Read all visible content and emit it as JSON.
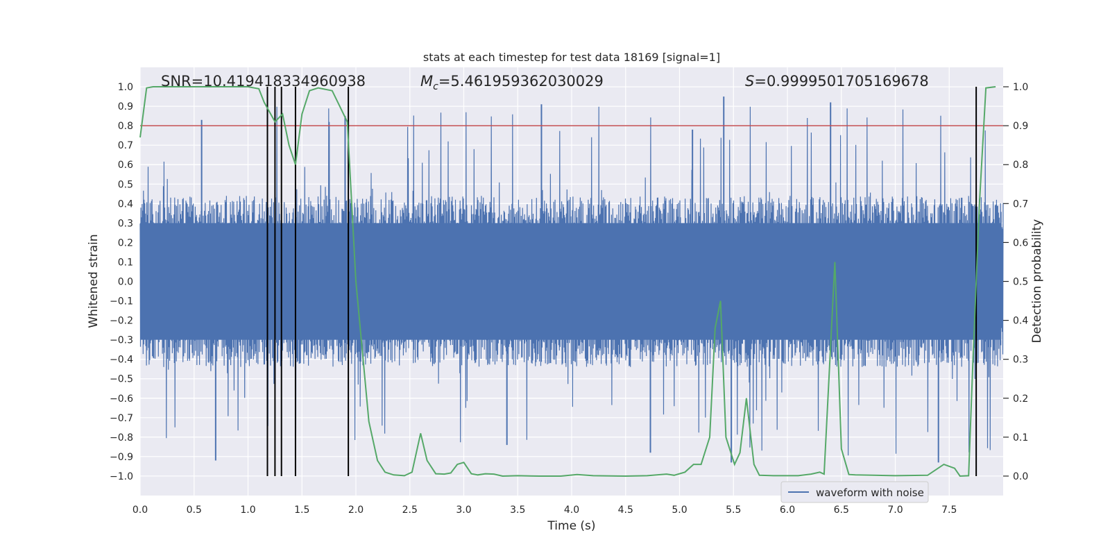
{
  "chart_data": {
    "type": "line",
    "title": "stats at each timestep for test data 18169 [signal=1]",
    "xlabel": "Time (s)",
    "ylabel": "Whitened strain",
    "y2label": "Detection probability",
    "xlim": [
      0.0,
      8.0
    ],
    "ylim": [
      -1.1,
      1.1
    ],
    "y2lim": [
      -0.05,
      1.05
    ],
    "xticks": [
      "0.0",
      "0.5",
      "1.0",
      "1.5",
      "2.0",
      "2.5",
      "3.0",
      "3.5",
      "4.0",
      "4.5",
      "5.0",
      "5.5",
      "6.0",
      "6.5",
      "7.0",
      "7.5"
    ],
    "yticks": [
      "1.0",
      "0.9",
      "0.8",
      "0.7",
      "0.6",
      "0.5",
      "0.4",
      "0.3",
      "0.2",
      "0.1",
      "0.0",
      "-0.1",
      "-0.2",
      "-0.3",
      "-0.4",
      "-0.5",
      "-0.6",
      "-0.7",
      "-0.8",
      "-0.9",
      "-1.0"
    ],
    "y2ticks": [
      "1.0",
      "0.9",
      "0.8",
      "0.7",
      "0.6",
      "0.5",
      "0.4",
      "0.3",
      "0.2",
      "0.1",
      "0.0"
    ],
    "annotations": {
      "snr": "SNR=10.419418334960938",
      "mc_symbol": "M",
      "mc_sub": "c",
      "mc_value": "=5.461959362030029",
      "s_symbol": "S",
      "s_value": "=0.9999501705169678"
    },
    "legend": {
      "entries": [
        "waveform with noise"
      ],
      "placement": "lower-right"
    },
    "grid": true,
    "threshold": 0.9,
    "detection_times": [
      1.18,
      1.25,
      1.31,
      1.44,
      1.93,
      7.75
    ],
    "series": [
      {
        "name": "waveform with noise",
        "axis": "left",
        "color": "#4c72b0",
        "noise_envelope": {
          "typical": 0.4,
          "peak": 0.9
        },
        "prominent_peaks": [
          {
            "x": 0.57,
            "y": 0.83
          },
          {
            "x": 0.7,
            "y": -0.92
          },
          {
            "x": 1.9,
            "y": 0.85
          },
          {
            "x": 3.72,
            "y": 0.91
          },
          {
            "x": 5.12,
            "y": 0.78
          },
          {
            "x": 5.41,
            "y": 0.95
          },
          {
            "x": 5.48,
            "y": -0.93
          },
          {
            "x": 6.4,
            "y": 0.92
          },
          {
            "x": 7.4,
            "y": -0.93
          },
          {
            "x": 4.73,
            "y": -0.88
          },
          {
            "x": 3.4,
            "y": -0.84
          }
        ]
      },
      {
        "name": "",
        "axis": "right",
        "color": "#55a868",
        "x": [
          0.0,
          0.06,
          0.12,
          0.5,
          1.0,
          1.1,
          1.15,
          1.25,
          1.32,
          1.38,
          1.44,
          1.5,
          1.57,
          1.65,
          1.78,
          1.85,
          1.92,
          2.0,
          2.05,
          2.12,
          2.2,
          2.27,
          2.35,
          2.45,
          2.52,
          2.6,
          2.66,
          2.74,
          2.82,
          2.88,
          2.94,
          3.0,
          3.07,
          3.13,
          3.2,
          3.28,
          3.36,
          3.5,
          3.7,
          3.9,
          4.05,
          4.2,
          4.5,
          4.7,
          4.88,
          4.95,
          5.05,
          5.13,
          5.2,
          5.28,
          5.33,
          5.38,
          5.43,
          5.51,
          5.56,
          5.62,
          5.69,
          5.74,
          5.87,
          6.1,
          6.22,
          6.3,
          6.34,
          6.44,
          6.5,
          6.57,
          6.63,
          6.8,
          7.0,
          7.3,
          7.45,
          7.5,
          7.55,
          7.6,
          7.68,
          7.72,
          7.78,
          7.84,
          7.93
        ],
        "y": [
          0.87,
          0.997,
          1.0,
          1.0,
          1.0,
          0.995,
          0.96,
          0.91,
          0.93,
          0.85,
          0.8,
          0.93,
          0.99,
          0.997,
          0.99,
          0.95,
          0.91,
          0.5,
          0.35,
          0.14,
          0.04,
          0.01,
          0.003,
          0.001,
          0.01,
          0.11,
          0.04,
          0.006,
          0.005,
          0.008,
          0.03,
          0.035,
          0.006,
          0.003,
          0.006,
          0.005,
          0.0,
          0.001,
          0.0,
          0.0,
          0.004,
          0.001,
          0.0,
          0.001,
          0.005,
          0.002,
          0.01,
          0.03,
          0.03,
          0.1,
          0.38,
          0.45,
          0.1,
          0.03,
          0.06,
          0.2,
          0.03,
          0.002,
          0.001,
          0.001,
          0.005,
          0.01,
          0.005,
          0.55,
          0.07,
          0.004,
          0.003,
          0.002,
          0.001,
          0.002,
          0.03,
          0.025,
          0.02,
          0.0,
          0.001,
          0.3,
          0.7,
          0.997,
          1.0
        ]
      }
    ]
  }
}
